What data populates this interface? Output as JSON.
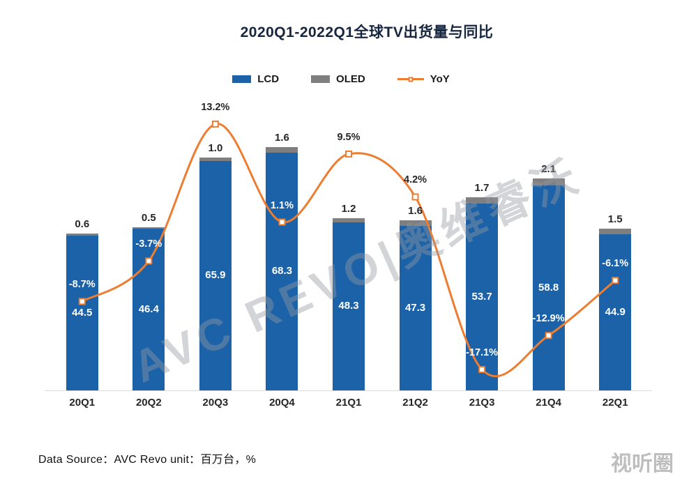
{
  "title": "2020Q1-2022Q1全球TV出货量与同比",
  "colors": {
    "lcd": "#1B62A8",
    "oled": "#7F7F7F",
    "yoy": "#ED7D31",
    "title_text": "#16263F"
  },
  "chart_data": {
    "type": "bar",
    "subtype": "stacked-bar-with-line",
    "title": "2020Q1-2022Q1全球TV出货量与同比",
    "categories": [
      "20Q1",
      "20Q2",
      "20Q3",
      "20Q4",
      "21Q1",
      "21Q2",
      "21Q3",
      "21Q4",
      "22Q1"
    ],
    "series": [
      {
        "name": "LCD",
        "type": "bar",
        "stack": true,
        "color": "#1B62A8",
        "values": [
          44.5,
          46.4,
          65.9,
          68.3,
          48.3,
          47.3,
          53.7,
          58.8,
          44.9
        ]
      },
      {
        "name": "OLED",
        "type": "bar",
        "stack": true,
        "color": "#7F7F7F",
        "values": [
          0.6,
          0.5,
          1.0,
          1.6,
          1.2,
          1.6,
          1.7,
          2.1,
          1.5
        ]
      },
      {
        "name": "YoY",
        "type": "line",
        "axis": "percent",
        "color": "#ED7D31",
        "values": [
          -8.7,
          -3.7,
          13.2,
          1.1,
          9.5,
          4.2,
          -17.1,
          -12.9,
          -6.1
        ]
      }
    ],
    "value_label_units": {
      "bars": "百万台",
      "line": "%"
    },
    "ylim_bars": [
      0,
      78
    ],
    "ylim_percent": [
      -20,
      16
    ],
    "grid": false,
    "legend_position": "top-center",
    "xlabel": "",
    "ylabel": ""
  },
  "watermark": {
    "text": "AVC REVO|奥维睿沃"
  },
  "corner_mark": "视听圈",
  "footer": "Data Source：AVC Revo  unit：百万台，%"
}
